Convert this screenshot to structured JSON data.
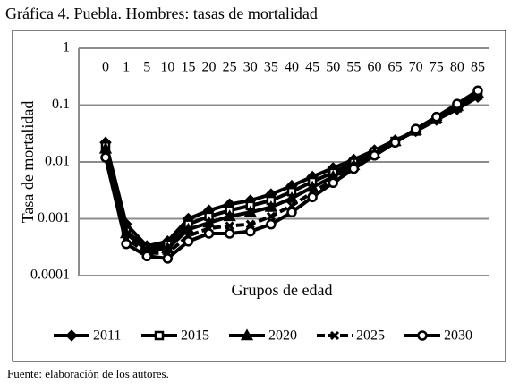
{
  "chart_data": {
    "type": "line",
    "title": "Gráfica 4. Puebla. Hombres: tasas de mortalidad",
    "xlabel": "Grupos de edad",
    "ylabel": "Tasa de mortalidad",
    "source": "Fuente: elaboración de los autores.",
    "categories": [
      "0",
      "1",
      "5",
      "10",
      "15",
      "20",
      "25",
      "30",
      "35",
      "40",
      "45",
      "50",
      "55",
      "60",
      "65",
      "70",
      "75",
      "80",
      "85"
    ],
    "log_y": true,
    "ylim": [
      0.0001,
      1
    ],
    "yticks": [
      0.0001,
      0.001,
      0.01,
      0.1,
      1
    ],
    "grid": true,
    "legend": "bottom",
    "series": [
      {
        "name": "2011",
        "color": "#000000",
        "marker": "diamond",
        "dash": "solid",
        "values": [
          0.022,
          0.0008,
          0.00033,
          0.0004,
          0.001,
          0.0014,
          0.0018,
          0.0021,
          0.0027,
          0.0038,
          0.0055,
          0.0078,
          0.011,
          0.016,
          0.024,
          0.035,
          0.055,
          0.085,
          0.14
        ]
      },
      {
        "name": "2015",
        "color": "#000000",
        "marker": "square",
        "dash": "solid",
        "values": [
          0.019,
          0.0006,
          0.0003,
          0.00035,
          0.0008,
          0.0011,
          0.0014,
          0.0017,
          0.0021,
          0.003,
          0.0045,
          0.0065,
          0.0098,
          0.015,
          0.023,
          0.035,
          0.056,
          0.09,
          0.15
        ]
      },
      {
        "name": "2020",
        "color": "#000000",
        "marker": "triangle",
        "dash": "solid",
        "values": [
          0.017,
          0.00055,
          0.00028,
          0.0003,
          0.00065,
          0.00085,
          0.0011,
          0.0013,
          0.0016,
          0.0023,
          0.0036,
          0.0055,
          0.0087,
          0.014,
          0.023,
          0.036,
          0.058,
          0.095,
          0.16
        ]
      },
      {
        "name": "2025",
        "color": "#000000",
        "marker": "x",
        "dash": "dashed",
        "values": [
          0.014,
          0.00045,
          0.00025,
          0.00025,
          0.0005,
          0.00068,
          0.00075,
          0.0008,
          0.0011,
          0.0017,
          0.0029,
          0.0048,
          0.008,
          0.013,
          0.022,
          0.037,
          0.06,
          0.1,
          0.17
        ]
      },
      {
        "name": "2030",
        "color": "#000000",
        "marker": "circle",
        "dash": "solid",
        "values": [
          0.012,
          0.00036,
          0.00022,
          0.0002,
          0.0004,
          0.00055,
          0.00055,
          0.0006,
          0.0008,
          0.0013,
          0.0024,
          0.0043,
          0.0076,
          0.013,
          0.022,
          0.038,
          0.062,
          0.105,
          0.18
        ]
      }
    ]
  }
}
